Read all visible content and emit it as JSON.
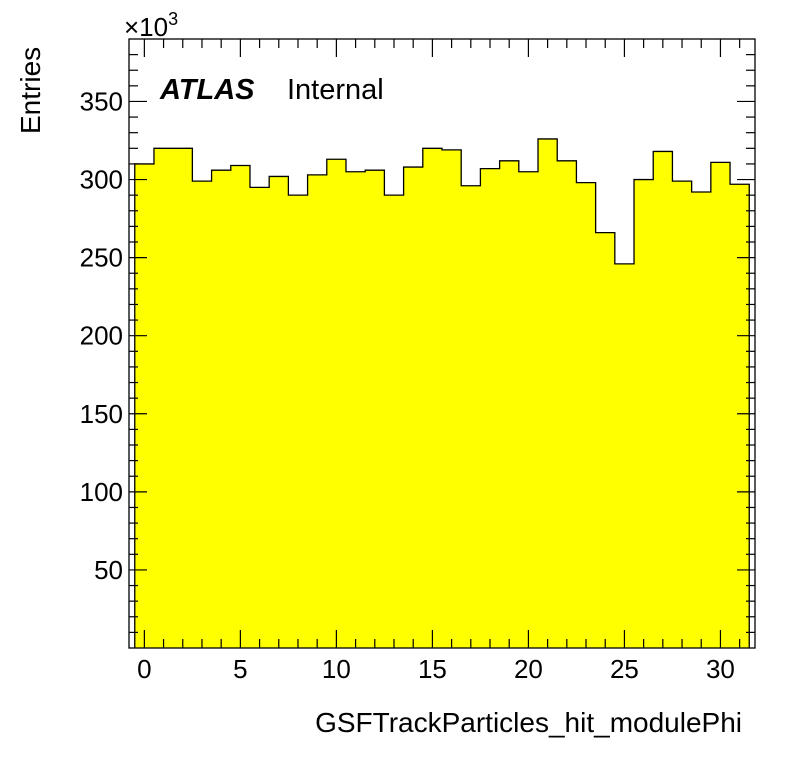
{
  "chart_data": {
    "type": "bar",
    "histogram": true,
    "xlabel": "GSFTrackParticles_hit_modulePhi",
    "ylabel": "Entries",
    "y_multiplier_label": "×10",
    "y_multiplier_exponent": "3",
    "xlim": [
      -0.8,
      31.8
    ],
    "ylim": [
      0,
      390
    ],
    "xticks": [
      0,
      5,
      10,
      15,
      20,
      25,
      30
    ],
    "xtick_labels": [
      "0",
      "5",
      "10",
      "15",
      "20",
      "25",
      "30"
    ],
    "yticks": [
      50,
      100,
      150,
      200,
      250,
      300,
      350
    ],
    "ytick_labels": [
      "50",
      "100",
      "150",
      "200",
      "250",
      "300",
      "350"
    ],
    "bin_edges": [
      -0.5,
      0.5,
      1.5,
      2.5,
      3.5,
      4.5,
      5.5,
      6.5,
      7.5,
      8.5,
      9.5,
      10.5,
      11.5,
      12.5,
      13.5,
      14.5,
      15.5,
      16.5,
      17.5,
      18.5,
      19.5,
      20.5,
      21.5,
      22.5,
      23.5,
      24.5,
      25.5,
      26.5,
      27.5,
      28.5,
      29.5,
      30.5,
      31.5
    ],
    "values": [
      310,
      320,
      320,
      299,
      306,
      309,
      295,
      302,
      290,
      303,
      313,
      305,
      306,
      290,
      308,
      320,
      319,
      296,
      307,
      312,
      305,
      326,
      312,
      298,
      266,
      246,
      300,
      318,
      299,
      292,
      311,
      297
    ],
    "fill_color": "#ffff00",
    "line_color": "#000000",
    "grid": false
  },
  "annotations": {
    "experiment": "ATLAS",
    "status": "Internal"
  }
}
